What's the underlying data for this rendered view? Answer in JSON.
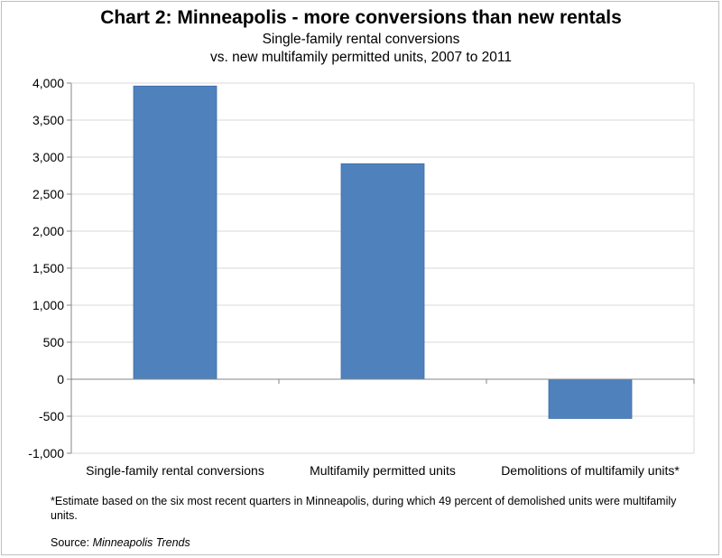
{
  "colors": {
    "bar": "#4f81bd",
    "bar_stroke": "#3f6fa8",
    "axis": "#868686",
    "grid": "#d9d9d9"
  },
  "chart_data": {
    "type": "bar",
    "title": "Chart 2: Minneapolis - more conversions than new rentals",
    "subtitle_line1": "Single-family rental conversions",
    "subtitle_line2": "vs. new multifamily permitted units, 2007 to 2011",
    "categories": [
      "Single-family rental conversions",
      "Multifamily permitted units",
      "Demolitions of multifamily units*"
    ],
    "values": [
      3960,
      2910,
      -530
    ],
    "ylim": [
      -1000,
      4000
    ],
    "yticks": [
      4000,
      3500,
      3000,
      2500,
      2000,
      1500,
      1000,
      500,
      0,
      -500,
      -1000
    ],
    "ytick_labels": [
      "4,000",
      "3,500",
      "3,000",
      "2,500",
      "2,000",
      "1,500",
      "1,000",
      "500",
      "0",
      "-500",
      "-1,000"
    ],
    "grid": true,
    "legend": "none"
  },
  "footnote": "*Estimate based on the six most recent quarters in Minneapolis, during which 49 percent of demolished units were multifamily units.",
  "source_label": "Source: ",
  "source_name": "Minneapolis Trends"
}
